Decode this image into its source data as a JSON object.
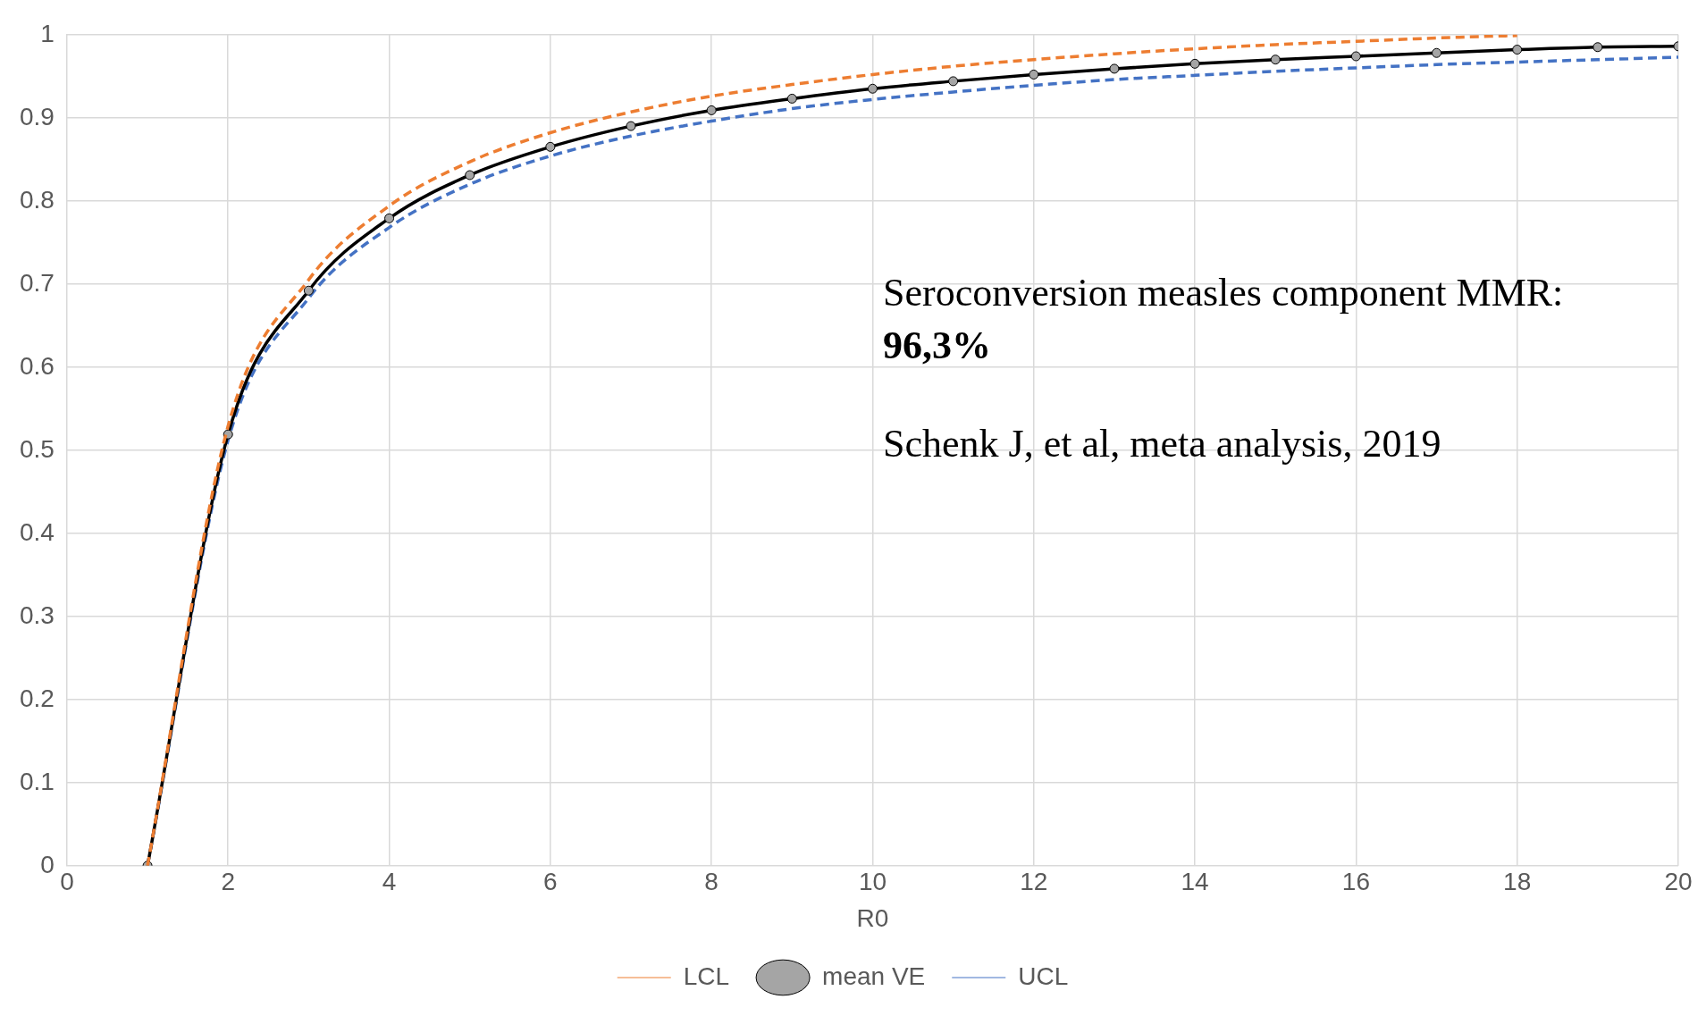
{
  "chart_data": {
    "type": "line",
    "xlabel": "R0",
    "x": [
      1,
      2,
      3,
      4,
      5,
      6,
      7,
      8,
      9,
      10,
      11,
      12,
      13,
      14,
      15,
      16,
      17,
      18,
      19,
      20
    ],
    "series": [
      {
        "name": "LCL",
        "color": "#ed7d31",
        "line_style": "dashed",
        "marker": "none",
        "values": [
          0,
          0.529,
          0.705,
          0.794,
          0.847,
          0.882,
          0.907,
          0.926,
          0.94,
          0.952,
          0.962,
          0.97,
          0.977,
          0.983,
          0.988,
          0.992,
          0.996,
          0.999,
          null,
          null
        ]
      },
      {
        "name": "mean VE",
        "color": "#000000",
        "line_style": "solid",
        "marker": "circle",
        "values": [
          0,
          0.519,
          0.692,
          0.779,
          0.831,
          0.865,
          0.89,
          0.909,
          0.923,
          0.935,
          0.944,
          0.952,
          0.959,
          0.965,
          0.97,
          0.974,
          0.978,
          0.982,
          0.985,
          0.986
        ]
      },
      {
        "name": "UCL",
        "color": "#4472c4",
        "line_style": "dashed",
        "marker": "none",
        "values": [
          0,
          0.512,
          0.683,
          0.768,
          0.82,
          0.854,
          0.878,
          0.896,
          0.911,
          0.922,
          0.931,
          0.939,
          0.946,
          0.951,
          0.956,
          0.96,
          0.964,
          0.967,
          0.97,
          0.973
        ]
      }
    ],
    "xlim": [
      0,
      20
    ],
    "xticks": [
      0,
      2,
      4,
      6,
      8,
      10,
      12,
      14,
      16,
      18,
      20
    ],
    "ylim": [
      0,
      1
    ],
    "yticks": [
      0,
      0.1,
      0.2,
      0.3,
      0.4,
      0.5,
      0.6,
      0.7,
      0.8,
      0.9,
      1
    ],
    "grid": true,
    "legend": "bottom",
    "annotations": [
      "Seroconversion measles component MMR:",
      "96,3%",
      "Schenk J, et al, meta analysis, 2019"
    ]
  }
}
